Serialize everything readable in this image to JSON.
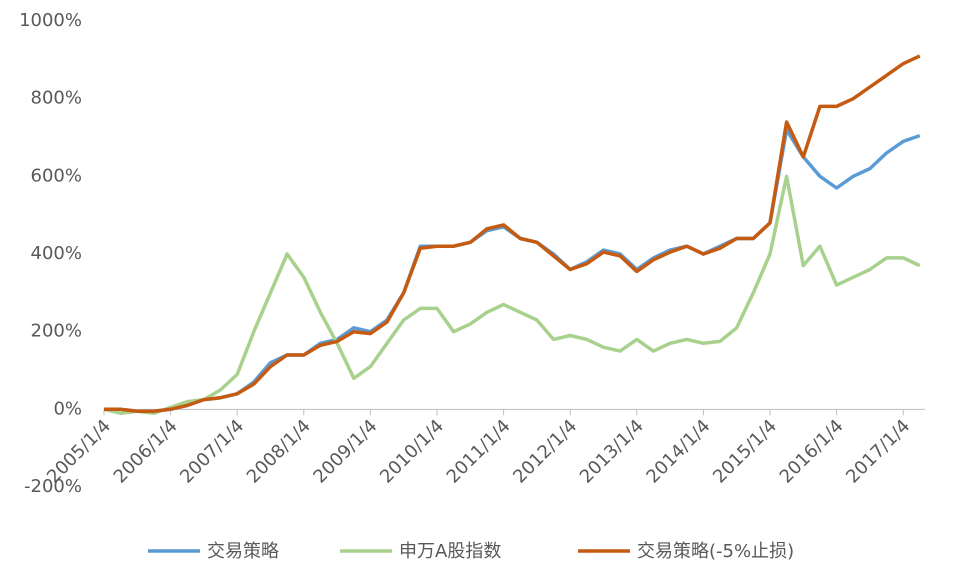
{
  "chart_data": {
    "type": "line",
    "categories": [
      "2005/1/4",
      null,
      null,
      null,
      "2006/1/4",
      null,
      null,
      null,
      "2007/1/4",
      null,
      null,
      null,
      "2008/1/4",
      null,
      null,
      null,
      "2009/1/4",
      null,
      null,
      null,
      "2010/1/4",
      null,
      null,
      null,
      "2011/1/4",
      null,
      null,
      null,
      "2012/1/4",
      null,
      null,
      null,
      "2013/1/4",
      null,
      null,
      null,
      "2014/1/4",
      null,
      null,
      null,
      "2015/1/4",
      null,
      null,
      null,
      "2016/1/4",
      null,
      null,
      null,
      "2017/1/4",
      null
    ],
    "series": [
      {
        "name": "交易策略",
        "color": "#5b9bd5",
        "values": [
          0,
          0,
          -5,
          -5,
          0,
          10,
          25,
          30,
          40,
          70,
          120,
          140,
          140,
          170,
          180,
          210,
          200,
          230,
          300,
          420,
          420,
          420,
          430,
          460,
          470,
          440,
          430,
          400,
          360,
          380,
          410,
          400,
          360,
          390,
          410,
          420,
          400,
          420,
          440,
          440,
          480,
          720,
          650,
          600,
          570,
          600,
          620,
          660,
          690,
          705
        ]
      },
      {
        "name": "申万A股指数",
        "color": "#a9d18e",
        "values": [
          0,
          -10,
          -5,
          -10,
          5,
          20,
          25,
          50,
          90,
          200,
          300,
          400,
          340,
          250,
          170,
          80,
          110,
          170,
          230,
          260,
          260,
          200,
          220,
          250,
          270,
          250,
          230,
          180,
          190,
          180,
          160,
          150,
          180,
          150,
          170,
          180,
          170,
          175,
          210,
          300,
          400,
          600,
          370,
          420,
          320,
          340,
          360,
          390,
          390,
          370
        ]
      },
      {
        "name": "交易策略(-5%止损)",
        "color": "#c55a11",
        "values": [
          0,
          0,
          -5,
          -5,
          0,
          10,
          25,
          30,
          40,
          65,
          110,
          140,
          140,
          165,
          175,
          200,
          195,
          225,
          300,
          415,
          420,
          420,
          430,
          465,
          475,
          440,
          430,
          395,
          360,
          375,
          405,
          395,
          355,
          385,
          405,
          420,
          400,
          415,
          440,
          440,
          480,
          740,
          650,
          780,
          780,
          800,
          830,
          860,
          890,
          910
        ]
      }
    ],
    "ylim": [
      -200,
      1000
    ],
    "yticks": [
      {
        "value": -200,
        "label": "-200%"
      },
      {
        "value": 0,
        "label": "0%"
      },
      {
        "value": 200,
        "label": "200%"
      },
      {
        "value": 400,
        "label": "400%"
      },
      {
        "value": 600,
        "label": "600%"
      },
      {
        "value": 800,
        "label": "800%"
      },
      {
        "value": 1000,
        "label": "1000%"
      }
    ],
    "grid": false
  }
}
